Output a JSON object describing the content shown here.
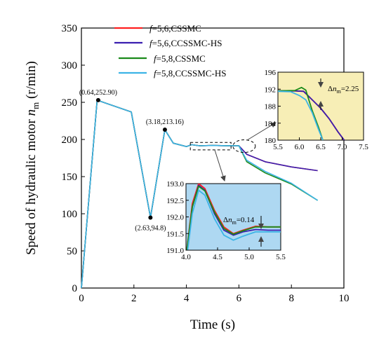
{
  "chart_data": {
    "type": "line",
    "xlabel": "Time (s)",
    "ylabel_main": "Speed of hydraulic  motor ",
    "ylabel_var": "n",
    "ylabel_sub": "m",
    "ylabel_unit": "(r/min)",
    "xlim": [
      0,
      10
    ],
    "ylim": [
      0,
      350
    ],
    "xticks": [
      "0",
      "2",
      "4",
      "6",
      "8",
      "10"
    ],
    "yticks": [
      "0",
      "50",
      "100",
      "150",
      "200",
      "250",
      "300",
      "350"
    ],
    "grid": false,
    "legend_position": "top-center",
    "series": [
      {
        "key": "s1",
        "legend_var": "f",
        "legend_rest": "=5,6,CSSMC",
        "color": "#ff1f1f"
      },
      {
        "key": "s2",
        "legend_var": "f",
        "legend_rest": "=5,6,CCSSMC-HS",
        "color": "#3a1fb0"
      },
      {
        "key": "s3",
        "legend_var": "f",
        "legend_rest": "=5,8,CSSMC",
        "color": "#1b8a1b"
      },
      {
        "key": "s4",
        "legend_var": "f",
        "legend_rest": "=5,8,CCSSMC-HS",
        "color": "#3cb4e6"
      }
    ],
    "main_data": {
      "common": [
        [
          0,
          0
        ],
        [
          0.6,
          252.9
        ],
        [
          1.0,
          248
        ],
        [
          1.9,
          237
        ],
        [
          2.63,
          94.8
        ],
        [
          3.18,
          213.16
        ],
        [
          3.5,
          195
        ],
        [
          4.0,
          190.5
        ],
        [
          4.2,
          192.9
        ],
        [
          4.5,
          191.5
        ],
        [
          5.0,
          191.9
        ],
        [
          5.5,
          191.6
        ],
        [
          5.8,
          191.6
        ],
        [
          6.0,
          191.5
        ]
      ],
      "s1_tail": [
        [
          6.3,
          180
        ],
        [
          7.0,
          170
        ],
        [
          8.0,
          163
        ],
        [
          9.0,
          158
        ]
      ],
      "s2_tail": [
        [
          6.3,
          180
        ],
        [
          7.0,
          170
        ],
        [
          8.0,
          163
        ],
        [
          9.0,
          158
        ]
      ],
      "s3_tail": [
        [
          6.3,
          170
        ],
        [
          7.0,
          155
        ],
        [
          8.0,
          140
        ],
        [
          9.0,
          118
        ]
      ],
      "s4_tail": [
        [
          6.3,
          172
        ],
        [
          7.0,
          157
        ],
        [
          8.0,
          141
        ],
        [
          9.0,
          118
        ]
      ]
    },
    "annotations": [
      {
        "text": "(0.64,252.90)",
        "x": 0.64,
        "y": 252.9
      },
      {
        "text": "(2.63,94.8)",
        "x": 2.63,
        "y": 94.8
      },
      {
        "text": "(3.18,213.16)",
        "x": 3.18,
        "y": 213.16
      }
    ],
    "inset_bottom": {
      "xlim": [
        4.0,
        5.5
      ],
      "ylim": [
        191.0,
        193.0
      ],
      "xticks": [
        "4.0",
        "4.5",
        "5.0",
        "5.5"
      ],
      "yticks": [
        "191.0",
        "191.5",
        "192.0",
        "192.5",
        "193.0"
      ],
      "bg": "#aed8f2",
      "delta_label_pre": "Δ",
      "delta_label_var": "n",
      "delta_label_sub": "m",
      "delta_label_post": "=0.14",
      "lines": {
        "s1": [
          [
            4.0,
            190.8
          ],
          [
            4.1,
            192.4
          ],
          [
            4.2,
            193.0
          ],
          [
            4.3,
            192.85
          ],
          [
            4.45,
            192.2
          ],
          [
            4.6,
            191.7
          ],
          [
            4.75,
            191.5
          ],
          [
            4.9,
            191.6
          ],
          [
            5.1,
            191.72
          ],
          [
            5.3,
            191.7
          ],
          [
            5.5,
            191.7
          ]
        ],
        "s2": [
          [
            4.0,
            190.7
          ],
          [
            4.1,
            192.3
          ],
          [
            4.2,
            192.95
          ],
          [
            4.3,
            192.8
          ],
          [
            4.45,
            192.1
          ],
          [
            4.6,
            191.6
          ],
          [
            4.75,
            191.45
          ],
          [
            4.9,
            191.55
          ],
          [
            5.1,
            191.62
          ],
          [
            5.3,
            191.6
          ],
          [
            5.5,
            191.6
          ]
        ],
        "s3": [
          [
            4.0,
            190.8
          ],
          [
            4.1,
            192.3
          ],
          [
            4.2,
            192.92
          ],
          [
            4.3,
            192.78
          ],
          [
            4.45,
            192.15
          ],
          [
            4.6,
            191.65
          ],
          [
            4.75,
            191.48
          ],
          [
            4.9,
            191.58
          ],
          [
            5.1,
            191.7
          ],
          [
            5.3,
            191.7
          ],
          [
            5.5,
            191.7
          ]
        ],
        "s4": [
          [
            4.0,
            190.6
          ],
          [
            4.1,
            192.1
          ],
          [
            4.2,
            192.8
          ],
          [
            4.3,
            192.65
          ],
          [
            4.45,
            191.95
          ],
          [
            4.6,
            191.45
          ],
          [
            4.75,
            191.3
          ],
          [
            4.9,
            191.42
          ],
          [
            5.1,
            191.55
          ],
          [
            5.3,
            191.55
          ],
          [
            5.5,
            191.55
          ]
        ]
      }
    },
    "inset_top": {
      "xlim": [
        5.5,
        7.5
      ],
      "ylim": [
        180,
        196
      ],
      "xticks": [
        "5.5",
        "6.0",
        "6.5",
        "7.0",
        "7.5"
      ],
      "yticks": [
        "180",
        "184",
        "188",
        "192",
        "196"
      ],
      "bg": "#f7eeb6",
      "delta_label_pre": "Δ",
      "delta_label_var": "n",
      "delta_label_sub": "m",
      "delta_label_post": "=2.25",
      "lines": {
        "s1": [
          [
            5.5,
            191.6
          ],
          [
            5.9,
            191.6
          ],
          [
            6.1,
            191.5
          ],
          [
            6.3,
            189.5
          ],
          [
            6.5,
            187.5
          ],
          [
            6.7,
            185
          ],
          [
            6.9,
            182
          ],
          [
            7.05,
            180
          ]
        ],
        "s2": [
          [
            5.5,
            191.6
          ],
          [
            5.9,
            191.6
          ],
          [
            6.1,
            191.5
          ],
          [
            6.3,
            189.5
          ],
          [
            6.5,
            187.5
          ],
          [
            6.7,
            185
          ],
          [
            6.9,
            182
          ],
          [
            7.05,
            180
          ]
        ],
        "s3": [
          [
            5.5,
            191.6
          ],
          [
            5.9,
            191.7
          ],
          [
            6.05,
            192.4
          ],
          [
            6.15,
            191.8
          ],
          [
            6.3,
            187
          ],
          [
            6.45,
            183
          ],
          [
            6.55,
            180
          ]
        ],
        "s4": [
          [
            5.5,
            191.5
          ],
          [
            5.8,
            191.4
          ],
          [
            6.0,
            190.5
          ],
          [
            6.15,
            189.5
          ],
          [
            6.3,
            186.5
          ],
          [
            6.45,
            182.5
          ],
          [
            6.55,
            180
          ]
        ]
      }
    }
  }
}
